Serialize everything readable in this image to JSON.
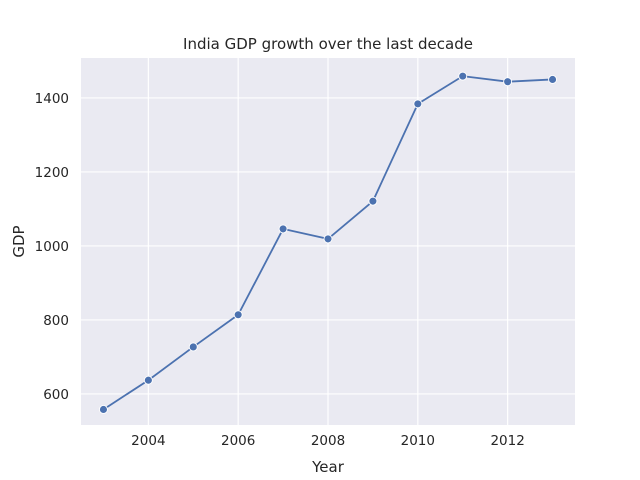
{
  "chart_data": {
    "type": "line",
    "title": "India GDP growth over the last decade",
    "xlabel": "Year",
    "ylabel": "GDP",
    "xlim": [
      2002.5,
      2013.5
    ],
    "ylim": [
      516,
      1508
    ],
    "xticks": [
      2004,
      2006,
      2008,
      2010,
      2012
    ],
    "yticks": [
      600,
      800,
      1000,
      1200,
      1400
    ],
    "grid": true,
    "series": [
      {
        "color": "#4c72b0",
        "marker": "circle",
        "x": [
          2003,
          2004,
          2005,
          2006,
          2007,
          2008,
          2009,
          2010,
          2011,
          2012,
          2013
        ],
        "y": [
          558,
          637,
          727,
          814,
          1046,
          1019,
          1121,
          1384,
          1459,
          1444,
          1450
        ]
      }
    ],
    "colors": {
      "background": "#eaeaf2",
      "grid": "#ffffff",
      "line": "#4c72b0",
      "text": "#262626"
    }
  }
}
